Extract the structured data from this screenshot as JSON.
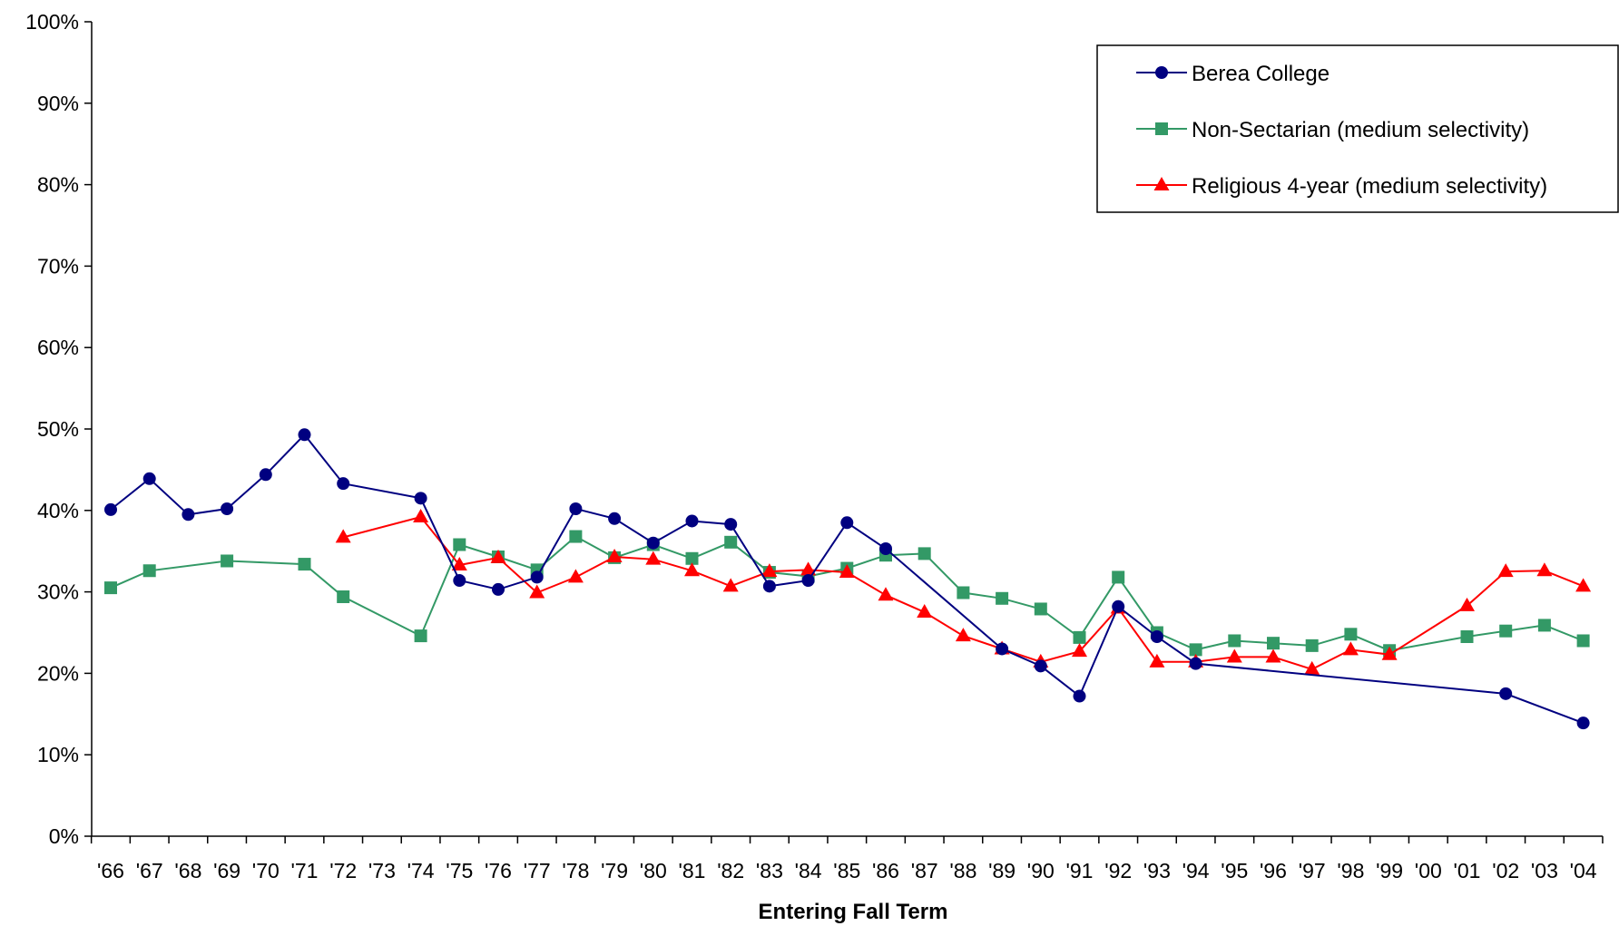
{
  "chart_data": {
    "type": "line",
    "title": "",
    "xlabel": "Entering Fall Term",
    "ylabel": "",
    "ylim": [
      0,
      100
    ],
    "yticks": [
      "0%",
      "10%",
      "20%",
      "30%",
      "40%",
      "50%",
      "60%",
      "70%",
      "80%",
      "90%",
      "100%"
    ],
    "grid": false,
    "legend_position": "top-right",
    "categories": [
      "'66",
      "'67",
      "'68",
      "'69",
      "'70",
      "'71",
      "'72",
      "'73",
      "'74",
      "'75",
      "'76",
      "'77",
      "'78",
      "'79",
      "'80",
      "'81",
      "'82",
      "'83",
      "'84",
      "'85",
      "'86",
      "'87",
      "'88",
      "'89",
      "'90",
      "'91",
      "'92",
      "'93",
      "'94",
      "'95",
      "'96",
      "'97",
      "'98",
      "'99",
      "'00",
      "'01",
      "'02",
      "'03",
      "'04"
    ],
    "series": [
      {
        "name": "Berea College",
        "color": "#000080",
        "marker": "circle",
        "values": [
          40.1,
          43.9,
          39.5,
          40.2,
          44.4,
          49.3,
          43.3,
          null,
          41.5,
          31.4,
          30.3,
          31.8,
          40.2,
          39.0,
          36.0,
          38.7,
          38.3,
          30.7,
          31.4,
          38.5,
          35.3,
          null,
          null,
          23.0,
          20.9,
          17.2,
          28.2,
          24.5,
          21.2,
          null,
          null,
          null,
          null,
          null,
          null,
          null,
          17.5,
          null,
          13.9
        ]
      },
      {
        "name": "Non-Sectarian (medium selectivity)",
        "color": "#339966",
        "marker": "square",
        "values": [
          30.5,
          32.6,
          null,
          33.8,
          null,
          33.4,
          29.4,
          null,
          24.6,
          35.8,
          34.3,
          32.7,
          36.8,
          34.2,
          35.8,
          34.1,
          36.1,
          32.4,
          31.9,
          32.9,
          34.5,
          34.7,
          29.9,
          29.2,
          27.9,
          24.4,
          31.8,
          25.0,
          22.9,
          24.0,
          23.7,
          23.4,
          24.8,
          22.8,
          null,
          24.5,
          25.2,
          25.9,
          24.0
        ]
      },
      {
        "name": "Religious 4-year (medium selectivity)",
        "color": "#ff0000",
        "marker": "triangle",
        "values": [
          null,
          null,
          null,
          null,
          null,
          null,
          36.7,
          null,
          39.2,
          33.3,
          34.2,
          29.9,
          31.8,
          34.3,
          34.0,
          32.6,
          30.7,
          32.5,
          32.7,
          32.4,
          29.6,
          27.5,
          24.6,
          23.0,
          21.4,
          22.7,
          28.0,
          21.4,
          21.4,
          22.0,
          22.0,
          20.5,
          22.9,
          22.3,
          null,
          28.3,
          32.5,
          32.6,
          30.7
        ]
      }
    ]
  }
}
